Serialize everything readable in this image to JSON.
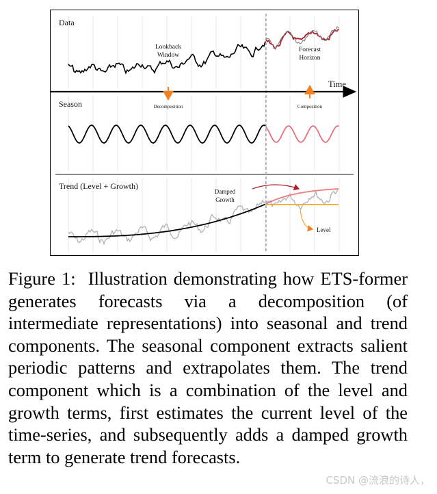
{
  "figure": {
    "panels": {
      "data": "Data",
      "season": "Season",
      "trend": "Trend (Level + Growth)"
    },
    "annotations": {
      "lookback_line1": "Lookback",
      "lookback_line2": "Window",
      "forecast_line1": "Forecast",
      "forecast_line2": "Horizon",
      "time": "Time",
      "decomposition": "Decomposition",
      "composition": "Composition",
      "damped_line1": "Damped",
      "damped_line2": "Growth",
      "level": "Level"
    },
    "colors": {
      "history": "#000000",
      "forecast": "#b31b2b",
      "season_forecast": "#e8707a",
      "growth": "#f07a7a",
      "level": "#f5a623",
      "arrow": "#f08020",
      "context": "#b5b5b5",
      "divider": "#777777"
    }
  },
  "caption": {
    "label": "Figure 1:",
    "text": "Illustration demonstrating how ETS-former generates forecasts via a decomposition (of intermediate representations) into seasonal and trend components. The seasonal component extracts salient periodic patterns and extrapolates them. The trend component which is a combination of the level and growth terms, first estimates the current level of the time-series, and subsequently adds a damped growth term to generate trend forecasts."
  },
  "watermark": "CSDN @流浪的诗人，"
}
